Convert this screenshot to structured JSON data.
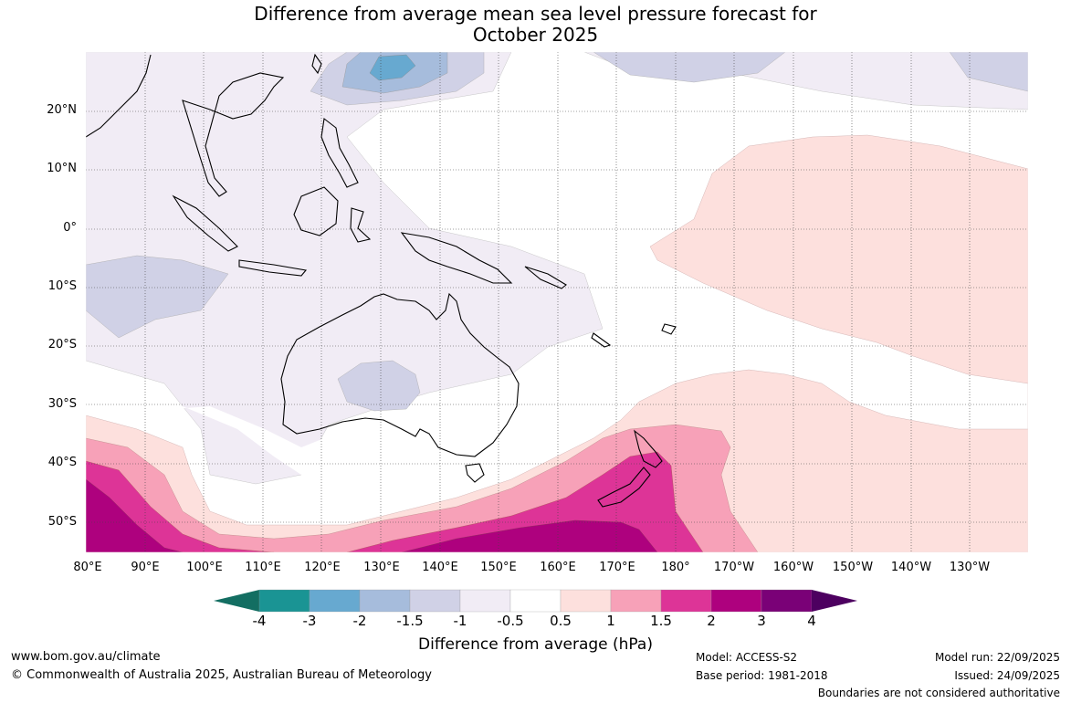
{
  "title_line1": "Difference from average mean sea level pressure forecast for",
  "title_line2": "October 2025",
  "lat_labels": [
    "20°N",
    "10°N",
    "0°",
    "10°S",
    "20°S",
    "30°S",
    "40°S",
    "50°S"
  ],
  "lon_labels": [
    "80°E",
    "90°E",
    "100°E",
    "110°E",
    "120°E",
    "130°E",
    "140°E",
    "150°E",
    "160°E",
    "170°E",
    "180°",
    "170°W",
    "160°W",
    "150°W",
    "140°W",
    "130°W"
  ],
  "colorbar": {
    "ticks": [
      "-4",
      "-3",
      "-2",
      "-1.5",
      "-1",
      "-0.5",
      "0.5",
      "1",
      "1.5",
      "2",
      "3",
      "4"
    ],
    "colors": [
      "#136e62",
      "#1a9494",
      "#67a9d0",
      "#a6bcdc",
      "#d0d1e6",
      "#f1ecf5",
      "#ffffff",
      "#fde0dd",
      "#f7a1b8",
      "#dd3497",
      "#ae017e",
      "#7a0177",
      "#4d0060"
    ],
    "label": "Difference from average (hPa)"
  },
  "footer": {
    "url": "www.bom.gov.au/climate",
    "copyright": "© Commonwealth of Australia 2025, Australian Bureau of Meteorology",
    "model": "Model: ACCESS-S2",
    "base_period": "Base period: 1981-2018",
    "model_run": "Model run: 22/09/2025",
    "issued": "Issued: 24/09/2025",
    "disclaimer": "Boundaries are not considered authoritative"
  }
}
